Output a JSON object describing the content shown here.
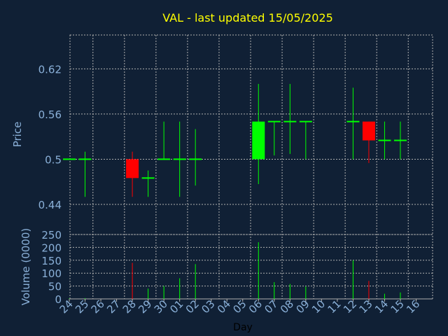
{
  "chart_data": [
    {
      "type": "candlestick",
      "title": "VAL - last updated 15/05/2025",
      "xlabel": "",
      "ylabel": "Price",
      "ylim": [
        0.4,
        0.665
      ],
      "yticks": [
        "0.44",
        "0.5",
        "0.56",
        "0.62"
      ],
      "ytick_values": [
        0.44,
        0.5,
        0.56,
        0.62
      ],
      "grid": true,
      "colors": {
        "up": "#00ff00",
        "down": "#ff0000",
        "grid": "#b0b0b0",
        "axis_text": "#8ab0d8",
        "title": "#ffff00",
        "background": "#102035"
      },
      "categories": [
        "24",
        "25",
        "26",
        "27",
        "28",
        "29",
        "30",
        "01",
        "02",
        "03",
        "04",
        "05",
        "06",
        "07",
        "08",
        "09",
        "10",
        "11",
        "12",
        "13",
        "14",
        "15",
        "16"
      ],
      "candles": [
        {
          "day": "24",
          "open": 0.5,
          "high": 0.5,
          "low": 0.5,
          "close": 0.5
        },
        {
          "day": "25",
          "open": 0.5,
          "high": 0.51,
          "low": 0.45,
          "close": 0.5
        },
        {
          "day": "28",
          "open": 0.5,
          "high": 0.51,
          "low": 0.45,
          "close": 0.475
        },
        {
          "day": "29",
          "open": 0.475,
          "high": 0.485,
          "low": 0.45,
          "close": 0.475
        },
        {
          "day": "30",
          "open": 0.5,
          "high": 0.55,
          "low": 0.5,
          "close": 0.5
        },
        {
          "day": "01",
          "open": 0.5,
          "high": 0.55,
          "low": 0.45,
          "close": 0.5
        },
        {
          "day": "02",
          "open": 0.5,
          "high": 0.54,
          "low": 0.465,
          "close": 0.5
        },
        {
          "day": "06",
          "open": 0.5,
          "high": 0.6,
          "low": 0.467,
          "close": 0.55
        },
        {
          "day": "07",
          "open": 0.55,
          "high": 0.55,
          "low": 0.505,
          "close": 0.55
        },
        {
          "day": "08",
          "open": 0.55,
          "high": 0.6,
          "low": 0.507,
          "close": 0.55
        },
        {
          "day": "09",
          "open": 0.55,
          "high": 0.55,
          "low": 0.5,
          "close": 0.55
        },
        {
          "day": "12",
          "open": 0.55,
          "high": 0.595,
          "low": 0.5,
          "close": 0.55
        },
        {
          "day": "13",
          "open": 0.55,
          "high": 0.55,
          "low": 0.495,
          "close": 0.525
        },
        {
          "day": "14",
          "open": 0.525,
          "high": 0.55,
          "low": 0.5,
          "close": 0.525
        },
        {
          "day": "15",
          "open": 0.525,
          "high": 0.55,
          "low": 0.5,
          "close": 0.525
        }
      ]
    },
    {
      "type": "bar",
      "xlabel": "Day",
      "ylabel": "Volume (0000)",
      "ylim": [
        0,
        250
      ],
      "yticks": [
        "0",
        "50",
        "100",
        "150",
        "200",
        "250"
      ],
      "ytick_values": [
        0,
        50,
        100,
        150,
        200,
        250
      ],
      "grid": true,
      "categories": [
        "24",
        "25",
        "28",
        "29",
        "30",
        "01",
        "02",
        "06",
        "07",
        "08",
        "09",
        "12",
        "13",
        "14",
        "15"
      ],
      "values": [
        2,
        3,
        140,
        40,
        50,
        80,
        135,
        220,
        65,
        58,
        48,
        150,
        70,
        20,
        25
      ],
      "colors": [
        "#00ff00",
        "#00ff00",
        "#ff0000",
        "#00ff00",
        "#00ff00",
        "#00ff00",
        "#00ff00",
        "#00ff00",
        "#00ff00",
        "#00ff00",
        "#00ff00",
        "#00ff00",
        "#ff0000",
        "#00ff00",
        "#00ff00"
      ]
    }
  ]
}
